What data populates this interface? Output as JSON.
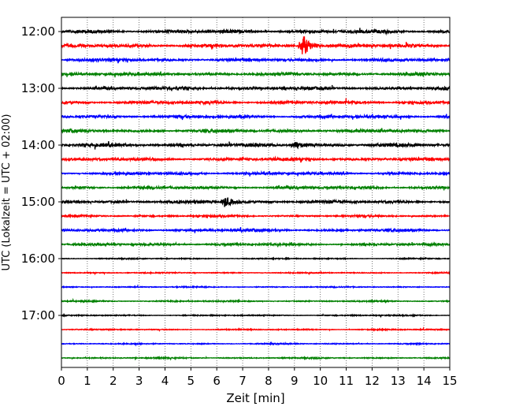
{
  "chart_data": {
    "type": "line",
    "title": "",
    "xlabel": "Zeit  [min]",
    "ylabel": "UTC (Lokalzeit = UTC + 02:00)",
    "xlim": [
      0,
      15
    ],
    "x_ticks": [
      "0",
      "1",
      "2",
      "3",
      "4",
      "5",
      "6",
      "7",
      "8",
      "9",
      "10",
      "11",
      "12",
      "13",
      "14",
      "15"
    ],
    "y_tick_labels": [
      "12:00",
      "13:00",
      "14:00",
      "15:00",
      "16:00",
      "17:00"
    ],
    "vertical_grid": true,
    "grid_style": "dotted",
    "trace_colors": [
      "#000000",
      "#ff0000",
      "#0000ff",
      "#008000"
    ],
    "traces": [
      {
        "start": "12:00",
        "noise": 0.9
      },
      {
        "start": "12:15",
        "noise": 0.9,
        "event": {
          "x": 9.3,
          "amp": 10
        }
      },
      {
        "start": "12:30",
        "noise": 0.8
      },
      {
        "start": "12:45",
        "noise": 0.8
      },
      {
        "start": "13:00",
        "noise": 0.8
      },
      {
        "start": "13:15",
        "noise": 0.8
      },
      {
        "start": "13:30",
        "noise": 0.8
      },
      {
        "start": "13:45",
        "noise": 0.8
      },
      {
        "start": "14:00",
        "noise": 0.9,
        "event": {
          "x": 9.0,
          "amp": 3
        }
      },
      {
        "start": "14:15",
        "noise": 0.8
      },
      {
        "start": "14:30",
        "noise": 0.7
      },
      {
        "start": "14:45",
        "noise": 0.7
      },
      {
        "start": "15:00",
        "noise": 0.8,
        "event": {
          "x": 6.3,
          "amp": 4
        }
      },
      {
        "start": "15:15",
        "noise": 0.5
      },
      {
        "start": "15:30",
        "noise": 0.7
      },
      {
        "start": "15:45",
        "noise": 0.6
      },
      {
        "start": "16:00",
        "noise": 0.3
      },
      {
        "start": "16:15",
        "noise": 0.3
      },
      {
        "start": "16:30",
        "noise": 0.3
      },
      {
        "start": "16:45",
        "noise": 0.35
      },
      {
        "start": "17:00",
        "noise": 0.3
      },
      {
        "start": "17:15",
        "noise": 0.3
      },
      {
        "start": "17:30",
        "noise": 0.3
      },
      {
        "start": "17:45",
        "noise": 0.35
      }
    ]
  }
}
